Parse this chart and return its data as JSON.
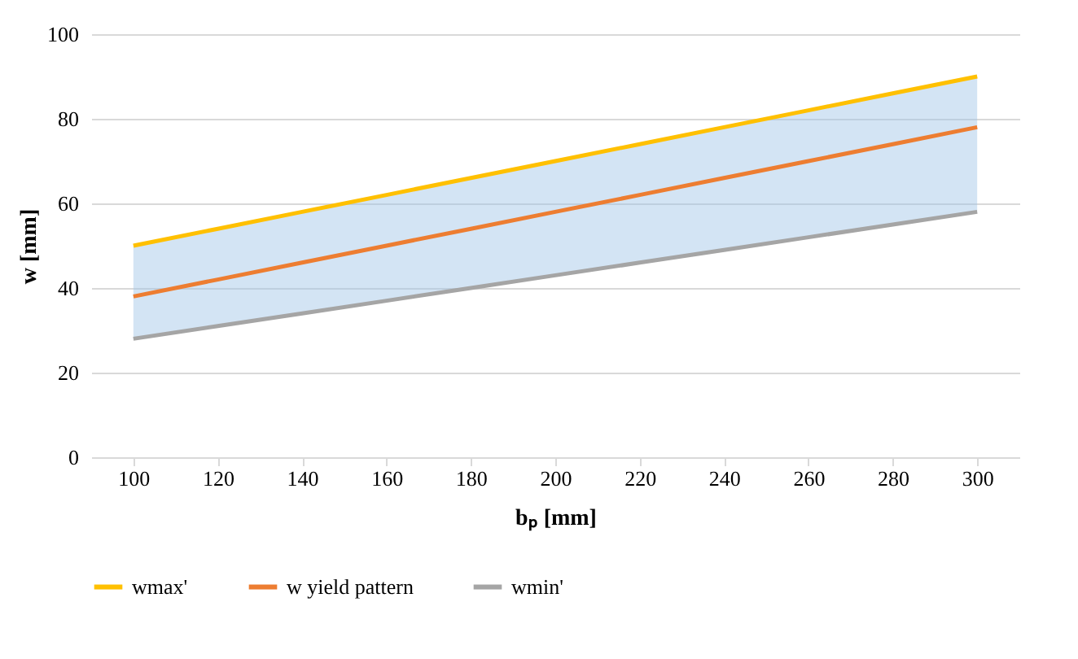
{
  "chart_data": {
    "type": "line",
    "xlabel": "bₚ [mm]",
    "ylabel": "w [mm]",
    "categories": [
      "100",
      "120",
      "140",
      "160",
      "180",
      "200",
      "220",
      "240",
      "260",
      "280",
      "300"
    ],
    "series": [
      {
        "name": "wmax'",
        "color": "#ffc000",
        "values": [
          50,
          54,
          58,
          62,
          66,
          70,
          74,
          78,
          82,
          86,
          90
        ]
      },
      {
        "name": "w yield pattern",
        "color": "#ed7d31",
        "values": [
          38,
          42,
          46,
          50,
          54,
          58,
          62,
          66,
          70,
          74,
          78
        ],
        "lower": [
          28,
          31,
          34,
          37,
          40,
          43,
          46,
          49,
          52,
          55,
          58
        ],
        "upper": [
          50,
          54,
          58,
          62,
          66,
          70,
          74,
          78,
          82,
          86,
          90
        ]
      },
      {
        "name": "wmin'",
        "color": "#a5a5a5",
        "values": [
          28,
          31,
          34,
          37,
          40,
          43,
          46,
          49,
          52,
          55,
          58
        ]
      }
    ],
    "ylim": [
      0,
      100
    ],
    "yticks": [
      0,
      20,
      40,
      60,
      80,
      100
    ],
    "grid": "y",
    "legend": "bottom",
    "marker": "none",
    "line_style": "solid"
  }
}
